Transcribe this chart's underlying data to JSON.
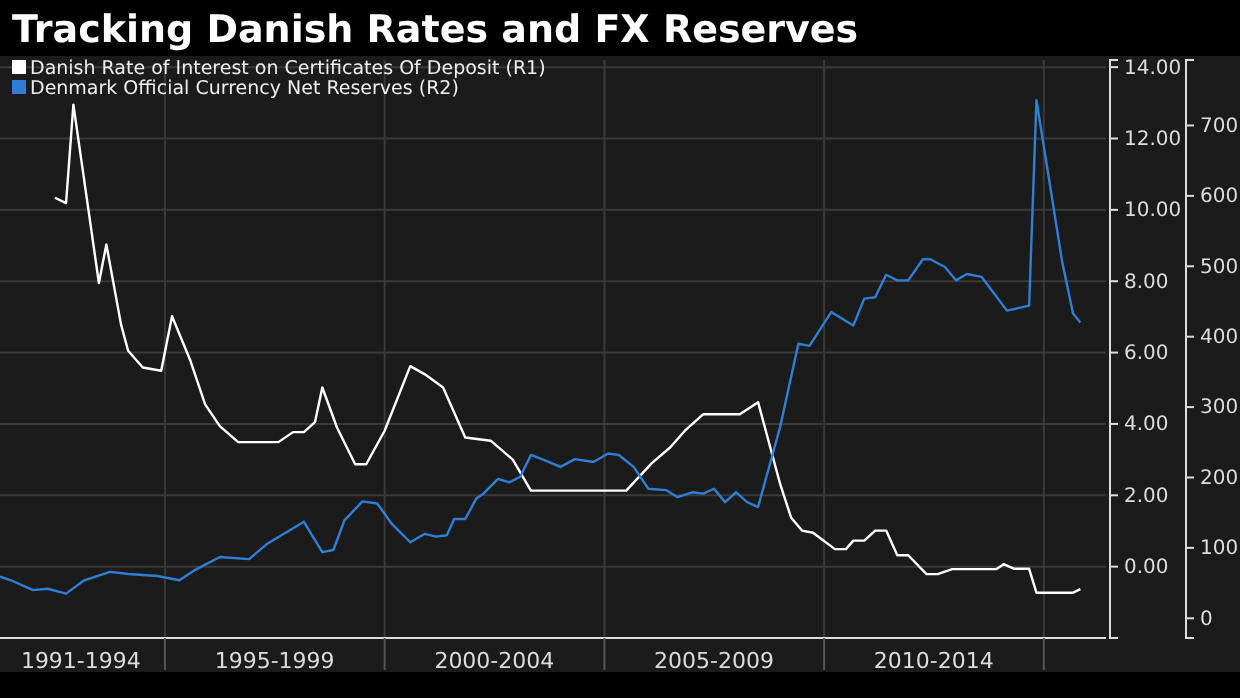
{
  "chart_data": {
    "type": "line",
    "title": "Tracking Danish Rates and FX Reserves",
    "legend": "top left",
    "grid": true,
    "marker": "none",
    "line_style": "solid",
    "xlim": [
      "1991-04",
      "2016-06"
    ],
    "xticks": [
      {
        "value": "1993-02",
        "label": "1991-1994"
      },
      {
        "value": "1995",
        "label": null
      },
      {
        "value": "1997-07",
        "label": "1995-1999"
      },
      {
        "value": "2000",
        "label": null
      },
      {
        "value": "2002-07",
        "label": "2000-2004"
      },
      {
        "value": "2005",
        "label": null
      },
      {
        "value": "2007-07",
        "label": "2005-2009"
      },
      {
        "value": "2010",
        "label": null
      },
      {
        "value": "2012-07",
        "label": "2010-2014"
      },
      {
        "value": "2015",
        "label": null
      }
    ],
    "ylim": [
      -2,
      14.2
    ],
    "yticks": [
      {
        "value": 0,
        "label": "0.00"
      },
      {
        "value": 2,
        "label": "2.00"
      },
      {
        "value": 4,
        "label": "4.00"
      },
      {
        "value": 6,
        "label": "6.00"
      },
      {
        "value": 8,
        "label": "8.00"
      },
      {
        "value": 10,
        "label": "10.00"
      },
      {
        "value": 12,
        "label": "12.00"
      },
      {
        "value": 14,
        "label": "14.00"
      }
    ],
    "y2lim": [
      -28,
      793
    ],
    "y2ticks": [
      0,
      100,
      200,
      300,
      400,
      500,
      600,
      700
    ],
    "series": [
      {
        "name": "Danish Rate of Interest on Certificates Of Deposit  (R1)",
        "color": "#ffffff",
        "axis": "y",
        "x": [
          "1992-07",
          "1992-10",
          "1992-12",
          "1993-07",
          "1993-09",
          "1994-01",
          "1994-03",
          "1994-07",
          "1994-12",
          "1995-03",
          "1995-08",
          "1995-12",
          "1996-04",
          "1996-09",
          "1997-08",
          "1997-12",
          "1998-03",
          "1998-06",
          "1998-08",
          "1998-12",
          "1999-05",
          "1999-08",
          "2000-01",
          "2000-08",
          "2000-12",
          "2001-05",
          "2001-11",
          "2002-06",
          "2002-12",
          "2003-05",
          "2005-05",
          "2005-07",
          "2006-02",
          "2006-07",
          "2006-11",
          "2007-04",
          "2008-02",
          "2008-07",
          "2009-01",
          "2009-04",
          "2009-07",
          "2009-10",
          "2010-04",
          "2010-07",
          "2010-09",
          "2010-12",
          "2011-03",
          "2011-06",
          "2011-09",
          "2011-12",
          "2012-05",
          "2012-08",
          "2012-12",
          "2013-12",
          "2014-02",
          "2014-05",
          "2014-09",
          "2014-11",
          "2015-09",
          "2015-11"
        ],
        "values": [
          10.34,
          10.19,
          12.95,
          7.95,
          9.03,
          6.79,
          6.05,
          5.58,
          5.49,
          7.02,
          5.77,
          4.55,
          3.94,
          3.49,
          3.49,
          3.77,
          3.77,
          4.05,
          5.02,
          3.9,
          2.87,
          2.87,
          3.81,
          5.62,
          5.39,
          5.02,
          3.62,
          3.53,
          3.0,
          2.13,
          2.13,
          2.13,
          2.91,
          3.34,
          3.81,
          4.27,
          4.27,
          4.61,
          2.31,
          1.38,
          1.01,
          0.95,
          0.49,
          0.49,
          0.73,
          0.73,
          1.01,
          1.01,
          0.32,
          0.32,
          -0.21,
          -0.21,
          -0.07,
          -0.07,
          0.07,
          -0.06,
          -0.06,
          -0.73,
          -0.73,
          -0.63
        ]
      },
      {
        "name": "Denmark Official Currency Net Reserves  (R2)",
        "color": "#2f7fd6",
        "axis": "y2",
        "x": [
          "1991-04",
          "1991-07",
          "1992-01",
          "1992-05",
          "1992-10",
          "1993-03",
          "1993-10",
          "1994-03",
          "1994-11",
          "1995-05",
          "1995-09",
          "1996-04",
          "1996-12",
          "1997-05",
          "1998-03",
          "1998-08",
          "1998-11",
          "1999-02",
          "1999-07",
          "1999-11",
          "2000-03",
          "2000-08",
          "2000-12",
          "2001-03",
          "2001-06",
          "2001-08",
          "2001-11",
          "2002-02",
          "2002-04",
          "2002-08",
          "2002-11",
          "2003-02",
          "2003-05",
          "2003-09",
          "2004-01",
          "2004-05",
          "2004-10",
          "2005-02",
          "2005-05",
          "2005-09",
          "2006-01",
          "2006-06",
          "2006-09",
          "2007-01",
          "2007-04",
          "2007-07",
          "2007-10",
          "2008-01",
          "2008-04",
          "2008-07",
          "2009-01",
          "2009-06",
          "2009-09",
          "2010-03",
          "2010-09",
          "2010-12",
          "2011-03",
          "2011-06",
          "2011-09",
          "2011-12",
          "2012-04",
          "2012-06",
          "2012-10",
          "2013-01",
          "2013-04",
          "2013-08",
          "2014-03",
          "2014-09",
          "2014-11",
          "2015-06",
          "2015-09",
          "2015-11"
        ],
        "values": [
          59,
          54,
          40,
          42,
          35,
          54,
          66,
          63,
          60,
          54,
          68,
          87,
          84,
          106,
          137,
          94,
          97,
          139,
          166,
          163,
          134,
          108,
          120,
          116,
          118,
          141,
          141,
          170,
          177,
          198,
          193,
          201,
          232,
          224,
          215,
          226,
          222,
          234,
          232,
          215,
          184,
          182,
          172,
          179,
          177,
          184,
          165,
          179,
          165,
          158,
          272,
          390,
          387,
          435,
          416,
          454,
          456,
          488,
          480,
          480,
          510,
          510,
          499,
          480,
          489,
          485,
          437,
          444,
          736,
          508,
          433,
          420
        ]
      }
    ]
  }
}
